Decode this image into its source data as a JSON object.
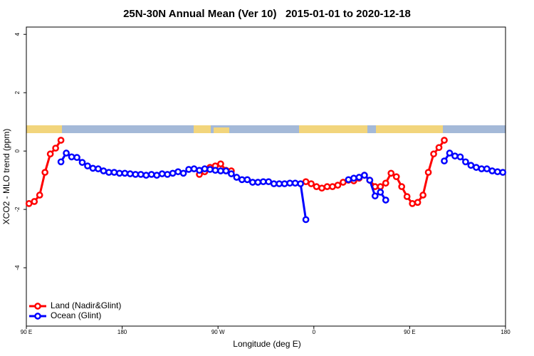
{
  "chart_data": {
    "type": "line",
    "title": "25N-30N Annual Mean (Ver 10)   2015-01-01 to 2020-12-18",
    "x_label": "Longitude (deg E)",
    "y_label": "XCO2 - MLO trend (ppm)",
    "x": [
      92.5,
      97.5,
      102.5,
      107.5,
      112.5,
      117.5,
      122.5,
      127.5,
      132.5,
      137.5,
      142.5,
      147.5,
      152.5,
      157.5,
      162.5,
      167.5,
      172.5,
      177.5,
      182.5,
      187.5,
      192.5,
      197.5,
      202.5,
      207.5,
      212.5,
      217.5,
      222.5,
      227.5,
      232.5,
      237.5,
      242.5,
      247.5,
      252.5,
      257.5,
      262.5,
      267.5,
      272.5,
      277.5,
      282.5,
      287.5,
      292.5,
      297.5,
      302.5,
      307.5,
      312.5,
      317.5,
      322.5,
      327.5,
      332.5,
      337.5,
      342.5,
      347.5,
      352.5,
      357.5,
      362.5,
      367.5,
      372.5,
      377.5,
      382.5,
      387.5,
      392.5,
      397.5,
      402.5,
      407.5,
      412.5,
      417.5,
      422.5,
      427.5,
      432.5,
      437.5,
      442.5,
      447.5,
      452.5,
      457.5,
      462.5,
      467.5,
      472.5,
      477.5,
      482.5,
      487.5,
      492.5,
      497.5,
      502.5,
      507.5,
      512.5,
      517.5,
      522.5,
      527.5,
      532.5,
      537.5
    ],
    "series": [
      {
        "name": "Land (Nadir&Glint)",
        "color": "#ff0000",
        "values": [
          -1.8,
          -1.73,
          -1.51,
          -0.73,
          -0.1,
          0.1,
          0.37,
          null,
          null,
          null,
          null,
          null,
          null,
          null,
          null,
          null,
          null,
          null,
          null,
          null,
          null,
          null,
          null,
          null,
          null,
          null,
          null,
          null,
          null,
          null,
          null,
          null,
          -0.8,
          -0.71,
          -0.56,
          -0.51,
          -0.44,
          -0.66,
          -0.68,
          null,
          null,
          null,
          null,
          null,
          null,
          null,
          null,
          null,
          null,
          null,
          null,
          null,
          -1.05,
          -1.12,
          -1.22,
          -1.27,
          -1.22,
          -1.22,
          -1.17,
          -1.07,
          -1.0,
          -1.02,
          -0.93,
          -0.83,
          -1.0,
          -1.22,
          -1.22,
          -1.1,
          -0.76,
          -0.88,
          -1.22,
          -1.56,
          -1.8,
          -1.76,
          -1.51,
          -0.73,
          -0.1,
          0.12,
          0.37,
          null,
          null,
          null,
          null,
          null,
          null,
          null,
          null,
          null,
          null,
          null
        ]
      },
      {
        "name": "Ocean (Glint)",
        "color": "#0000ff",
        "values": [
          null,
          null,
          null,
          null,
          null,
          null,
          -0.37,
          -0.07,
          -0.2,
          -0.22,
          -0.39,
          -0.51,
          -0.59,
          -0.61,
          -0.68,
          -0.73,
          -0.73,
          -0.76,
          -0.76,
          -0.78,
          -0.8,
          -0.8,
          -0.83,
          -0.8,
          -0.83,
          -0.78,
          -0.8,
          -0.76,
          -0.71,
          -0.76,
          -0.63,
          -0.61,
          -0.66,
          -0.61,
          -0.63,
          -0.66,
          -0.68,
          -0.68,
          -0.78,
          -0.9,
          -0.98,
          -0.98,
          -1.07,
          -1.07,
          -1.05,
          -1.05,
          -1.12,
          -1.12,
          -1.12,
          -1.1,
          -1.1,
          -1.12,
          -2.35,
          null,
          null,
          null,
          null,
          null,
          null,
          null,
          -0.98,
          -0.93,
          -0.9,
          -0.83,
          -1.0,
          -1.54,
          -1.41,
          -1.68,
          null,
          null,
          null,
          null,
          null,
          null,
          null,
          null,
          null,
          null,
          -0.34,
          -0.07,
          -0.17,
          -0.2,
          -0.37,
          -0.49,
          -0.56,
          -0.61,
          -0.61,
          -0.68,
          -0.71,
          -0.73
        ]
      }
    ],
    "xlim": [
      90,
      540
    ],
    "xticks": [
      {
        "value": 90,
        "label": "90 E"
      },
      180,
      {
        "value": 270,
        "label": "90 W"
      },
      {
        "value": 360,
        "label": "0"
      },
      {
        "value": 450,
        "label": "90 E"
      },
      {
        "value": 540,
        "label": "180"
      }
    ],
    "ylim": [
      -6,
      4.25
    ],
    "yticks": [
      -4,
      -2,
      0,
      2,
      4
    ],
    "legend": "bottom-left"
  }
}
